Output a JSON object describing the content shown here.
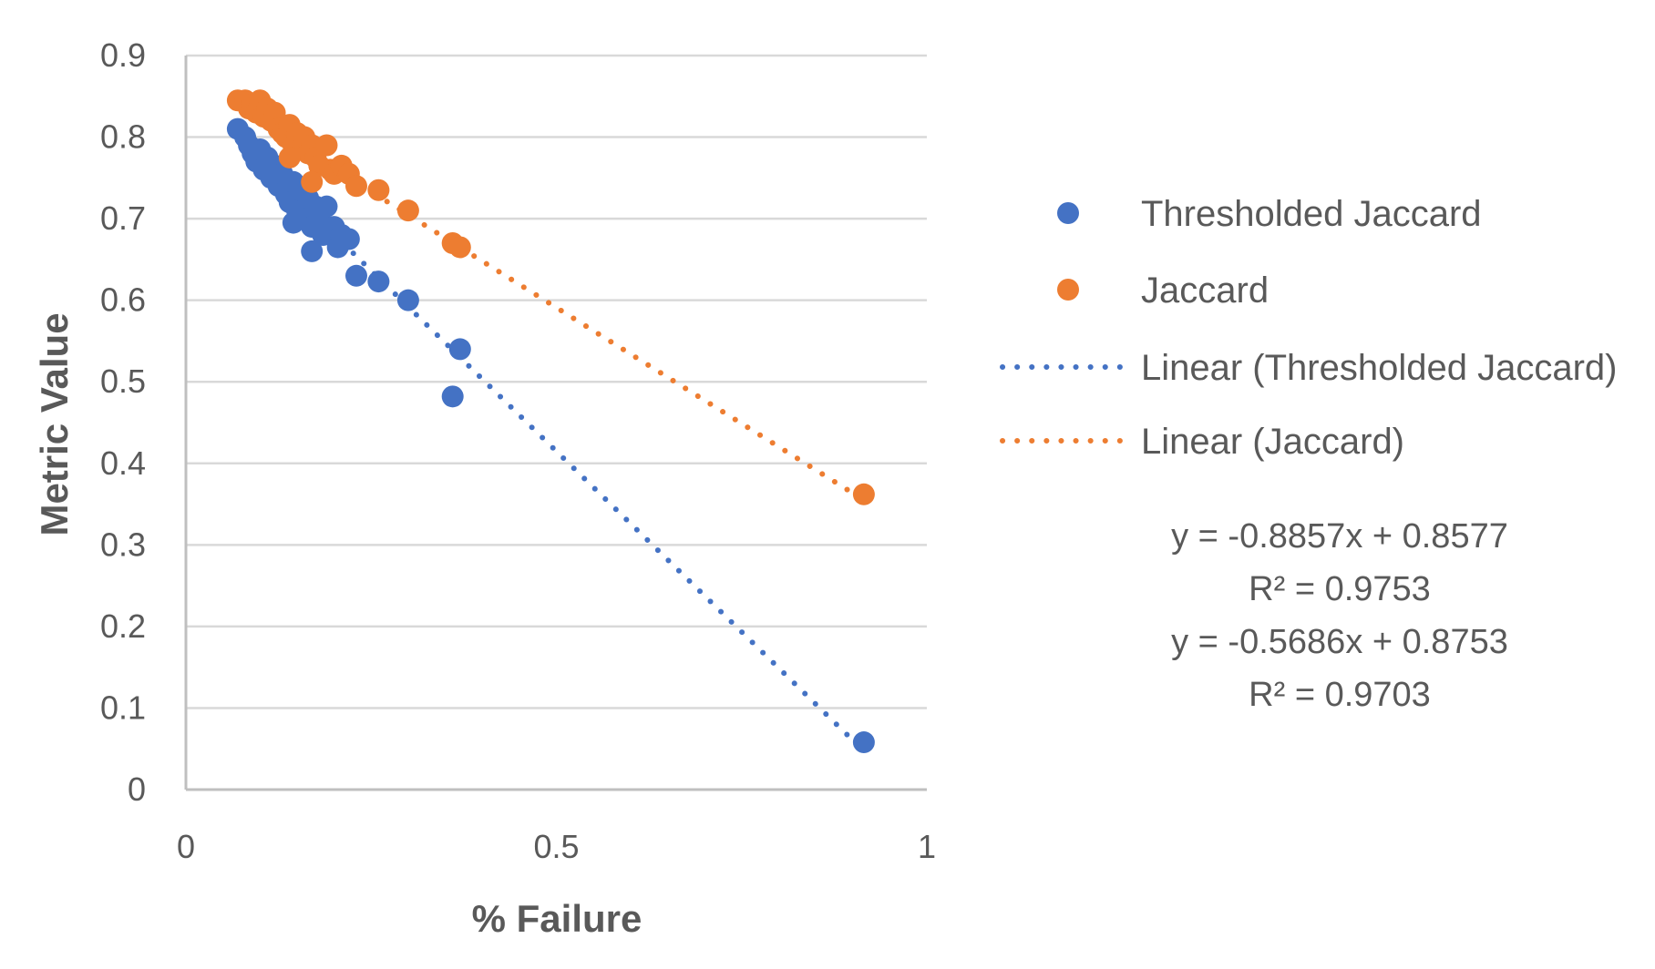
{
  "chart_data": {
    "type": "scatter",
    "title": "",
    "xlabel": "% Failure",
    "ylabel": "Metric Value",
    "xlim": [
      0,
      1
    ],
    "ylim": [
      0,
      0.9
    ],
    "x_ticks": [
      "0",
      "0.5",
      "1"
    ],
    "y_ticks": [
      "0",
      "0.1",
      "0.2",
      "0.3",
      "0.4",
      "0.5",
      "0.6",
      "0.7",
      "0.8",
      "0.9"
    ],
    "grid": "horizontal",
    "legend_position": "right",
    "series": [
      {
        "name": "Thresholded Jaccard",
        "color": "#4472C4",
        "points": [
          [
            0.07,
            0.81
          ],
          [
            0.08,
            0.8
          ],
          [
            0.085,
            0.79
          ],
          [
            0.09,
            0.78
          ],
          [
            0.095,
            0.77
          ],
          [
            0.1,
            0.785
          ],
          [
            0.105,
            0.76
          ],
          [
            0.11,
            0.775
          ],
          [
            0.115,
            0.75
          ],
          [
            0.12,
            0.765
          ],
          [
            0.125,
            0.74
          ],
          [
            0.13,
            0.755
          ],
          [
            0.135,
            0.73
          ],
          [
            0.14,
            0.72
          ],
          [
            0.145,
            0.745
          ],
          [
            0.15,
            0.71
          ],
          [
            0.155,
            0.735
          ],
          [
            0.16,
            0.7
          ],
          [
            0.165,
            0.725
          ],
          [
            0.17,
            0.69
          ],
          [
            0.175,
            0.715
          ],
          [
            0.18,
            0.7
          ],
          [
            0.185,
            0.68
          ],
          [
            0.19,
            0.715
          ],
          [
            0.2,
            0.69
          ],
          [
            0.205,
            0.665
          ],
          [
            0.21,
            0.68
          ],
          [
            0.22,
            0.675
          ],
          [
            0.17,
            0.66
          ],
          [
            0.145,
            0.695
          ],
          [
            0.23,
            0.63
          ],
          [
            0.26,
            0.623
          ],
          [
            0.3,
            0.6
          ],
          [
            0.37,
            0.54
          ],
          [
            0.36,
            0.482
          ],
          [
            0.915,
            0.058
          ]
        ]
      },
      {
        "name": "Jaccard",
        "color": "#ED7D31",
        "points": [
          [
            0.07,
            0.845
          ],
          [
            0.08,
            0.845
          ],
          [
            0.085,
            0.835
          ],
          [
            0.09,
            0.84
          ],
          [
            0.095,
            0.83
          ],
          [
            0.1,
            0.845
          ],
          [
            0.105,
            0.825
          ],
          [
            0.11,
            0.835
          ],
          [
            0.115,
            0.82
          ],
          [
            0.12,
            0.83
          ],
          [
            0.125,
            0.81
          ],
          [
            0.13,
            0.805
          ],
          [
            0.135,
            0.8
          ],
          [
            0.14,
            0.815
          ],
          [
            0.145,
            0.79
          ],
          [
            0.15,
            0.805
          ],
          [
            0.155,
            0.785
          ],
          [
            0.16,
            0.8
          ],
          [
            0.165,
            0.78
          ],
          [
            0.17,
            0.79
          ],
          [
            0.175,
            0.775
          ],
          [
            0.18,
            0.765
          ],
          [
            0.19,
            0.79
          ],
          [
            0.195,
            0.76
          ],
          [
            0.2,
            0.755
          ],
          [
            0.21,
            0.765
          ],
          [
            0.22,
            0.755
          ],
          [
            0.23,
            0.74
          ],
          [
            0.17,
            0.745
          ],
          [
            0.14,
            0.775
          ],
          [
            0.26,
            0.735
          ],
          [
            0.3,
            0.71
          ],
          [
            0.36,
            0.67
          ],
          [
            0.37,
            0.665
          ],
          [
            0.915,
            0.362
          ]
        ]
      }
    ],
    "trendlines": [
      {
        "name": "Linear (Thresholded Jaccard)",
        "color": "#4472C4",
        "slope": -0.8857,
        "intercept": 0.8577,
        "equation": "y = -0.8857x + 0.8577",
        "r2": "R² = 0.9753"
      },
      {
        "name": "Linear (Jaccard)",
        "color": "#ED7D31",
        "slope": -0.5686,
        "intercept": 0.8753,
        "equation": "y = -0.5686x + 0.8753",
        "r2": "R² = 0.9703"
      }
    ]
  }
}
